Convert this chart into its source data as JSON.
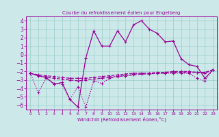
{
  "title": "Courbe du refroidissement éolien pour Engelberg",
  "xlabel": "Windchill (Refroidissement éolien,°C)",
  "background_color": "#cce8e8",
  "grid_color": "#99cccc",
  "line_color": "#990099",
  "x_values": [
    0,
    1,
    2,
    3,
    4,
    5,
    6,
    7,
    8,
    9,
    10,
    11,
    12,
    13,
    14,
    15,
    16,
    17,
    18,
    19,
    20,
    21,
    22,
    23
  ],
  "series_spline": [
    -2.2,
    -2.5,
    -2.7,
    -2.8,
    -2.9,
    -3.0,
    -3.1,
    -3.0,
    -2.9,
    -2.8,
    -2.7,
    -2.6,
    -2.5,
    -2.4,
    -2.3,
    -2.3,
    -2.2,
    -2.2,
    -2.1,
    -2.1,
    -2.1,
    -2.1,
    -2.1,
    -1.8
  ],
  "series_flat": [
    -2.2,
    -2.4,
    -2.5,
    -2.6,
    -2.7,
    -2.8,
    -2.8,
    -2.8,
    -2.7,
    -2.6,
    -2.5,
    -2.4,
    -2.3,
    -2.2,
    -2.2,
    -2.2,
    -2.1,
    -2.1,
    -2.0,
    -2.0,
    -2.0,
    -2.1,
    -2.2,
    -1.8
  ],
  "series_zigzag": [
    -2.2,
    -4.5,
    -2.8,
    -3.4,
    -3.5,
    -5.3,
    -3.8,
    -6.2,
    -3.1,
    -3.4,
    -2.8,
    -2.5,
    -2.5,
    -2.3,
    -2.2,
    -2.2,
    -2.2,
    -2.2,
    -2.2,
    -2.2,
    -2.2,
    -2.8,
    -3.1,
    -1.8
  ],
  "series_curve": [
    -2.2,
    -2.5,
    -2.7,
    -3.5,
    -3.3,
    -5.3,
    -6.2,
    -0.4,
    2.8,
    1.0,
    1.0,
    2.8,
    1.5,
    3.5,
    4.0,
    3.0,
    2.5,
    1.5,
    1.6,
    -0.5,
    -1.2,
    -1.4,
    -2.8,
    -1.8
  ],
  "ylim": [
    -6.5,
    4.5
  ],
  "xlim": [
    -0.5,
    23.5
  ],
  "yticks": [
    -6,
    -5,
    -4,
    -3,
    -2,
    -1,
    0,
    1,
    2,
    3,
    4
  ],
  "xticks": [
    0,
    1,
    2,
    3,
    4,
    5,
    6,
    7,
    8,
    9,
    10,
    11,
    12,
    13,
    14,
    15,
    16,
    17,
    18,
    19,
    20,
    21,
    22,
    23
  ]
}
